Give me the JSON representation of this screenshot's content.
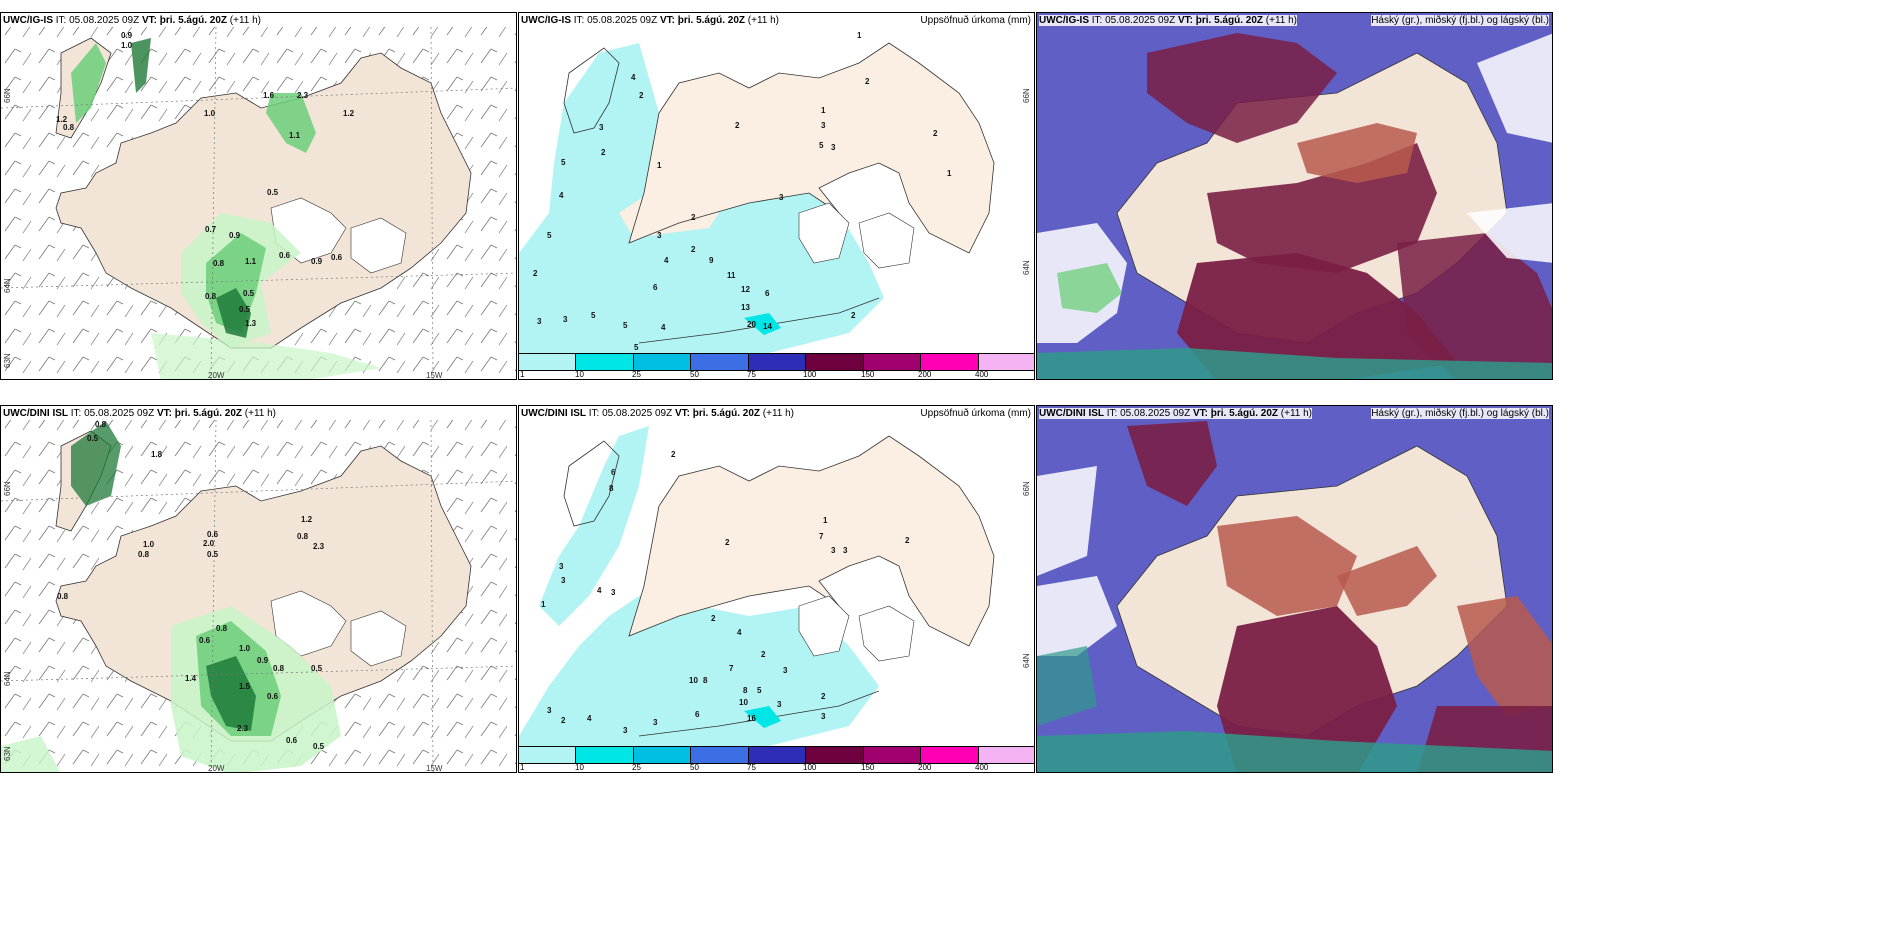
{
  "colors": {
    "land": "#f2e4d6",
    "land_light": "#fbeee2",
    "precip_light": "#b2f3f3",
    "precip_mid": "#00e6e6",
    "rain_green_light": "#c8f5c8",
    "rain_green_mid": "#6ccf7a",
    "rain_green_dark": "#1f7a3a",
    "cloud_high": "#7a1f45",
    "cloud_mid": "#b85a4e",
    "cloud_low": "#5f5fc6",
    "sea": "#ffffff"
  },
  "colorbar": {
    "colors": [
      "#b2f3f3",
      "#00e6e6",
      "#00bfe0",
      "#3c6ee6",
      "#2d2db8",
      "#6e0040",
      "#a0006e",
      "#ff00b4",
      "#f4b4f4"
    ],
    "ticks": [
      "1",
      "10",
      "25",
      "50",
      "75",
      "100",
      "150",
      "200",
      "400"
    ]
  },
  "rows": [
    {
      "model": "UWC/IG-IS",
      "it_label": "IT:",
      "it_value": "05.08.2025 09Z",
      "vt_label": "VT:",
      "vt_value": "þri. 5.ágú. 20Z",
      "lead": "(+11 h)",
      "precip_title": "Uppsöfnuð úrkoma (mm)",
      "cloud_title": "Háský (gr.), miðský (fj.bl.) og lágský (bl.)",
      "lat_labels": [
        "66N",
        "64N",
        "63N"
      ],
      "lon_labels": [
        "20W",
        "15W"
      ],
      "precip_lat_labels": [
        "66N",
        "64N"
      ],
      "left_values": [
        "0.9",
        "1.0",
        "1.2",
        "0.8",
        "1.0",
        "1.6",
        "2.3",
        "1.1",
        "1.2",
        "0.5",
        "0.7",
        "0.9",
        "0.8",
        "1.1",
        "0.6",
        "0.5",
        "0.8",
        "0.5",
        "1.3",
        "0.9",
        "0.6"
      ],
      "precip_values": [
        "1",
        "2",
        "4",
        "2",
        "5",
        "3",
        "4",
        "2",
        "1",
        "2",
        "1",
        "3",
        "5",
        "3",
        "2",
        "3",
        "2",
        "3",
        "4",
        "2",
        "9",
        "11",
        "12",
        "6",
        "13",
        "20",
        "14",
        "2",
        "5",
        "3",
        "6",
        "5",
        "4",
        "5",
        "3",
        "5",
        "2",
        "1"
      ]
    },
    {
      "model": "UWC/DINI ISL",
      "it_label": "IT:",
      "it_value": "05.08.2025 09Z",
      "vt_label": "VT:",
      "vt_value": "þri. 5.ágú. 20Z",
      "lead": "(+11 h)",
      "precip_title": "Uppsöfnuð úrkoma (mm)",
      "cloud_title": "Háský (gr.), miðský (fj.bl.) og lágský (bl.)",
      "lat_labels": [
        "66N",
        "64N",
        "63N"
      ],
      "lon_labels": [
        "20W",
        "15W"
      ],
      "precip_lat_labels": [
        "66N",
        "64N"
      ],
      "left_values": [
        "0.8",
        "0.5",
        "1.8",
        "1.0",
        "0.8",
        "0.6",
        "2.0",
        "0.5",
        "1.2",
        "0.8",
        "2.3",
        "0.8",
        "0.6",
        "0.8",
        "1.0",
        "0.9",
        "0.8",
        "0.5",
        "1.4",
        "1.5",
        "0.6",
        "2.3",
        "0.6",
        "0.5"
      ],
      "precip_values": [
        "2",
        "6",
        "8",
        "3",
        "1",
        "3",
        "4",
        "3",
        "2",
        "1",
        "2",
        "7",
        "3",
        "3",
        "2",
        "2",
        "3",
        "4",
        "7",
        "10",
        "8",
        "8",
        "5",
        "10",
        "16",
        "3",
        "2",
        "3",
        "3",
        "2",
        "6",
        "4",
        "3",
        "3"
      ]
    }
  ]
}
